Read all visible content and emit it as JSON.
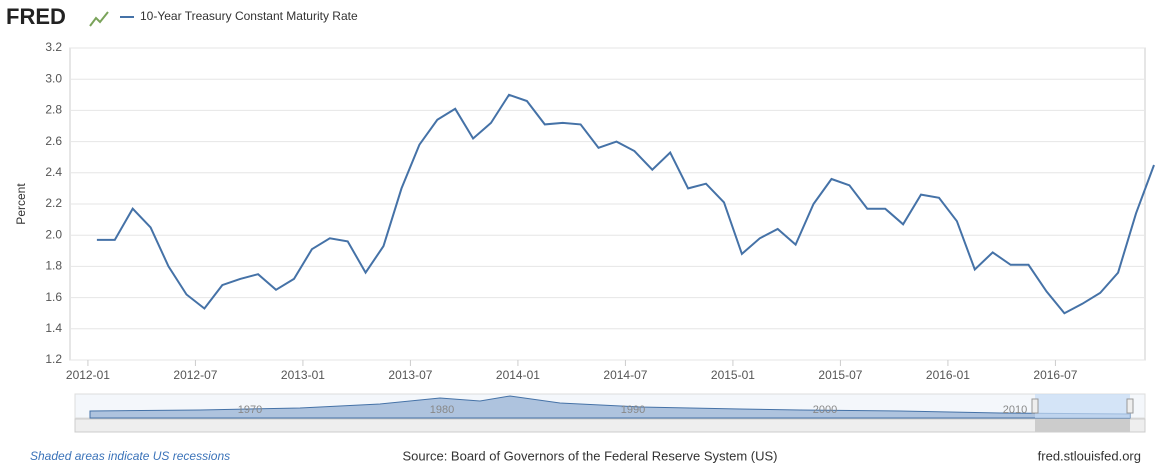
{
  "chart_data": {
    "type": "line",
    "logo": "FRED",
    "y_axis_label": "Percent",
    "x": [
      "2012-01",
      "2012-02",
      "2012-03",
      "2012-04",
      "2012-05",
      "2012-06",
      "2012-07",
      "2012-08",
      "2012-09",
      "2012-10",
      "2012-11",
      "2012-12",
      "2013-01",
      "2013-02",
      "2013-03",
      "2013-04",
      "2013-05",
      "2013-06",
      "2013-07",
      "2013-08",
      "2013-09",
      "2013-10",
      "2013-11",
      "2013-12",
      "2014-01",
      "2014-02",
      "2014-03",
      "2014-04",
      "2014-05",
      "2014-06",
      "2014-07",
      "2014-08",
      "2014-09",
      "2014-10",
      "2014-11",
      "2014-12",
      "2015-01",
      "2015-02",
      "2015-03",
      "2015-04",
      "2015-05",
      "2015-06",
      "2015-07",
      "2015-08",
      "2015-09",
      "2015-10",
      "2015-11",
      "2015-12",
      "2016-01",
      "2016-02",
      "2016-03",
      "2016-04",
      "2016-05",
      "2016-06",
      "2016-07",
      "2016-08",
      "2016-09",
      "2016-10",
      "2016-11",
      "2016-12"
    ],
    "series": [
      {
        "name": "10-Year Treasury Constant Maturity Rate",
        "color": "#4572a7",
        "values": [
          1.97,
          1.97,
          2.17,
          2.05,
          1.8,
          1.62,
          1.53,
          1.68,
          1.72,
          1.75,
          1.65,
          1.72,
          1.91,
          1.98,
          1.96,
          1.76,
          1.93,
          2.3,
          2.58,
          2.74,
          2.81,
          2.62,
          2.72,
          2.9,
          2.86,
          2.71,
          2.72,
          2.71,
          2.56,
          2.6,
          2.54,
          2.42,
          2.53,
          2.3,
          2.33,
          2.21,
          1.88,
          1.98,
          2.04,
          1.94,
          2.2,
          2.36,
          2.32,
          2.17,
          2.17,
          2.07,
          2.26,
          2.24,
          2.09,
          1.78,
          1.89,
          1.81,
          1.81,
          1.64,
          1.5,
          1.56,
          1.63,
          1.76,
          2.14,
          2.45
        ]
      }
    ],
    "xlim": [
      "2011-12",
      "2016-12"
    ],
    "xticks": [
      "2012-01",
      "2012-07",
      "2013-01",
      "2013-07",
      "2014-01",
      "2014-07",
      "2015-01",
      "2015-07",
      "2016-01",
      "2016-07"
    ],
    "ylim": [
      1.2,
      3.2
    ],
    "yticks": [
      1.2,
      1.4,
      1.6,
      1.8,
      {
        "value": 2,
        "label": "2.0"
      },
      2.2,
      2.4,
      2.6,
      2.8,
      {
        "value": 3,
        "label": "3.0"
      },
      3.2
    ],
    "grid": true,
    "navigator_labels": [
      "1970",
      "1980",
      "1990",
      "2000",
      "2010"
    ],
    "recession_note": "Shaded areas indicate US recessions",
    "source": "Source: Board of Governors of the Federal Reserve System (US)",
    "site": "fred.stlouisfed.org"
  }
}
